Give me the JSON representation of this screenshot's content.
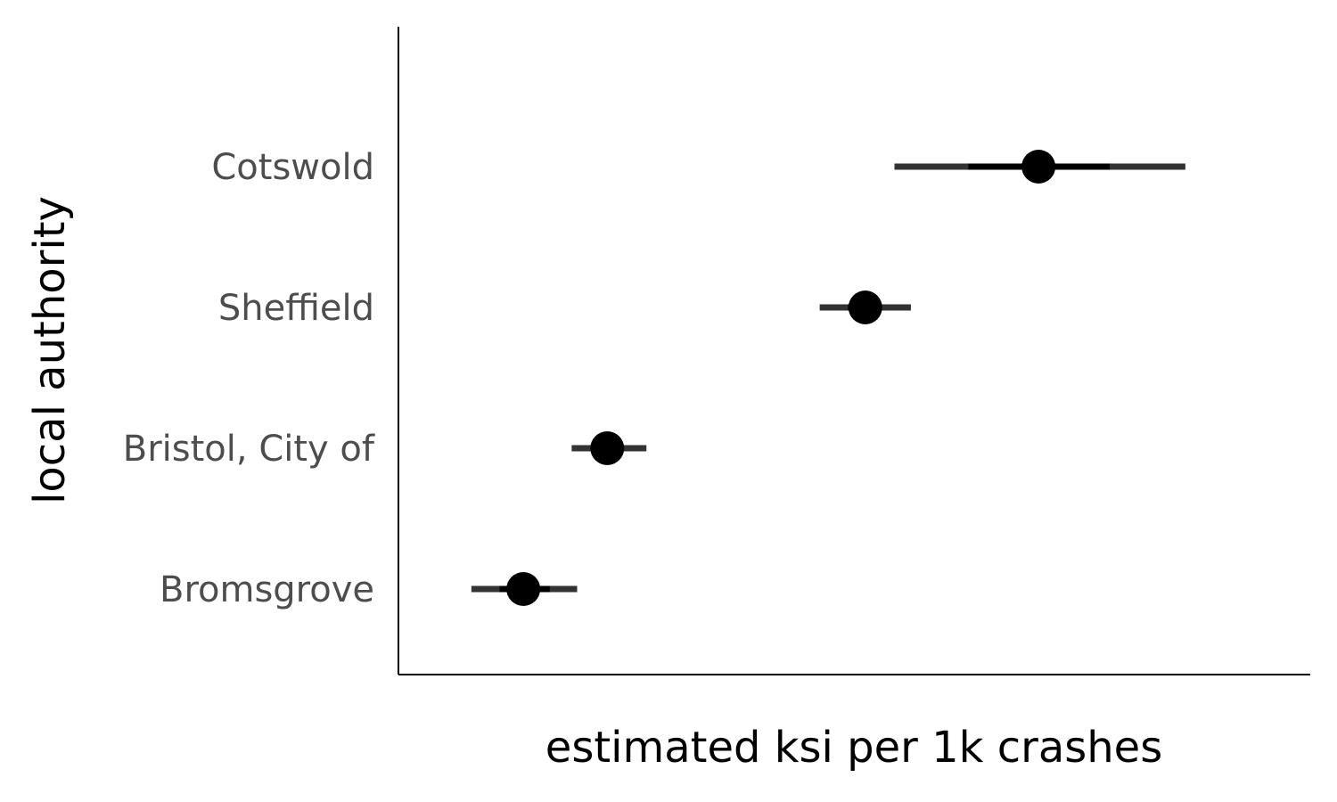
{
  "chart_data": {
    "type": "scatter",
    "subtype": "point-interval",
    "orientation": "horizontal",
    "xlabel": "estimated ksi per 1k crashes",
    "ylabel": "local authority",
    "x_tick_labels_shown": false,
    "grid": false,
    "legend": "none",
    "colors": {
      "point": "#000000",
      "outer_interval": "#333333",
      "inner_interval": "#000000",
      "axis": "#000000",
      "label": "#4d4d4d"
    },
    "xlim": [
      0,
      100
    ],
    "categories": [
      "Bromsgrove",
      "Bristol, City of",
      "Sheffield",
      "Cotswold"
    ],
    "points": [
      {
        "category": "Bromsgrove",
        "estimate": 13.7,
        "inner": [
          11.1,
          16.6
        ],
        "outer": [
          8.0,
          19.6
        ]
      },
      {
        "category": "Bristol, City of",
        "estimate": 22.9,
        "inner": [
          21.1,
          24.7
        ],
        "outer": [
          19.0,
          27.2
        ]
      },
      {
        "category": "Sheffield",
        "estimate": 51.2,
        "inner": [
          49.3,
          53.0
        ],
        "outer": [
          46.2,
          56.2
        ]
      },
      {
        "category": "Cotswold",
        "estimate": 70.2,
        "inner": [
          62.5,
          78.0
        ],
        "outer": [
          54.4,
          86.3
        ]
      }
    ]
  }
}
